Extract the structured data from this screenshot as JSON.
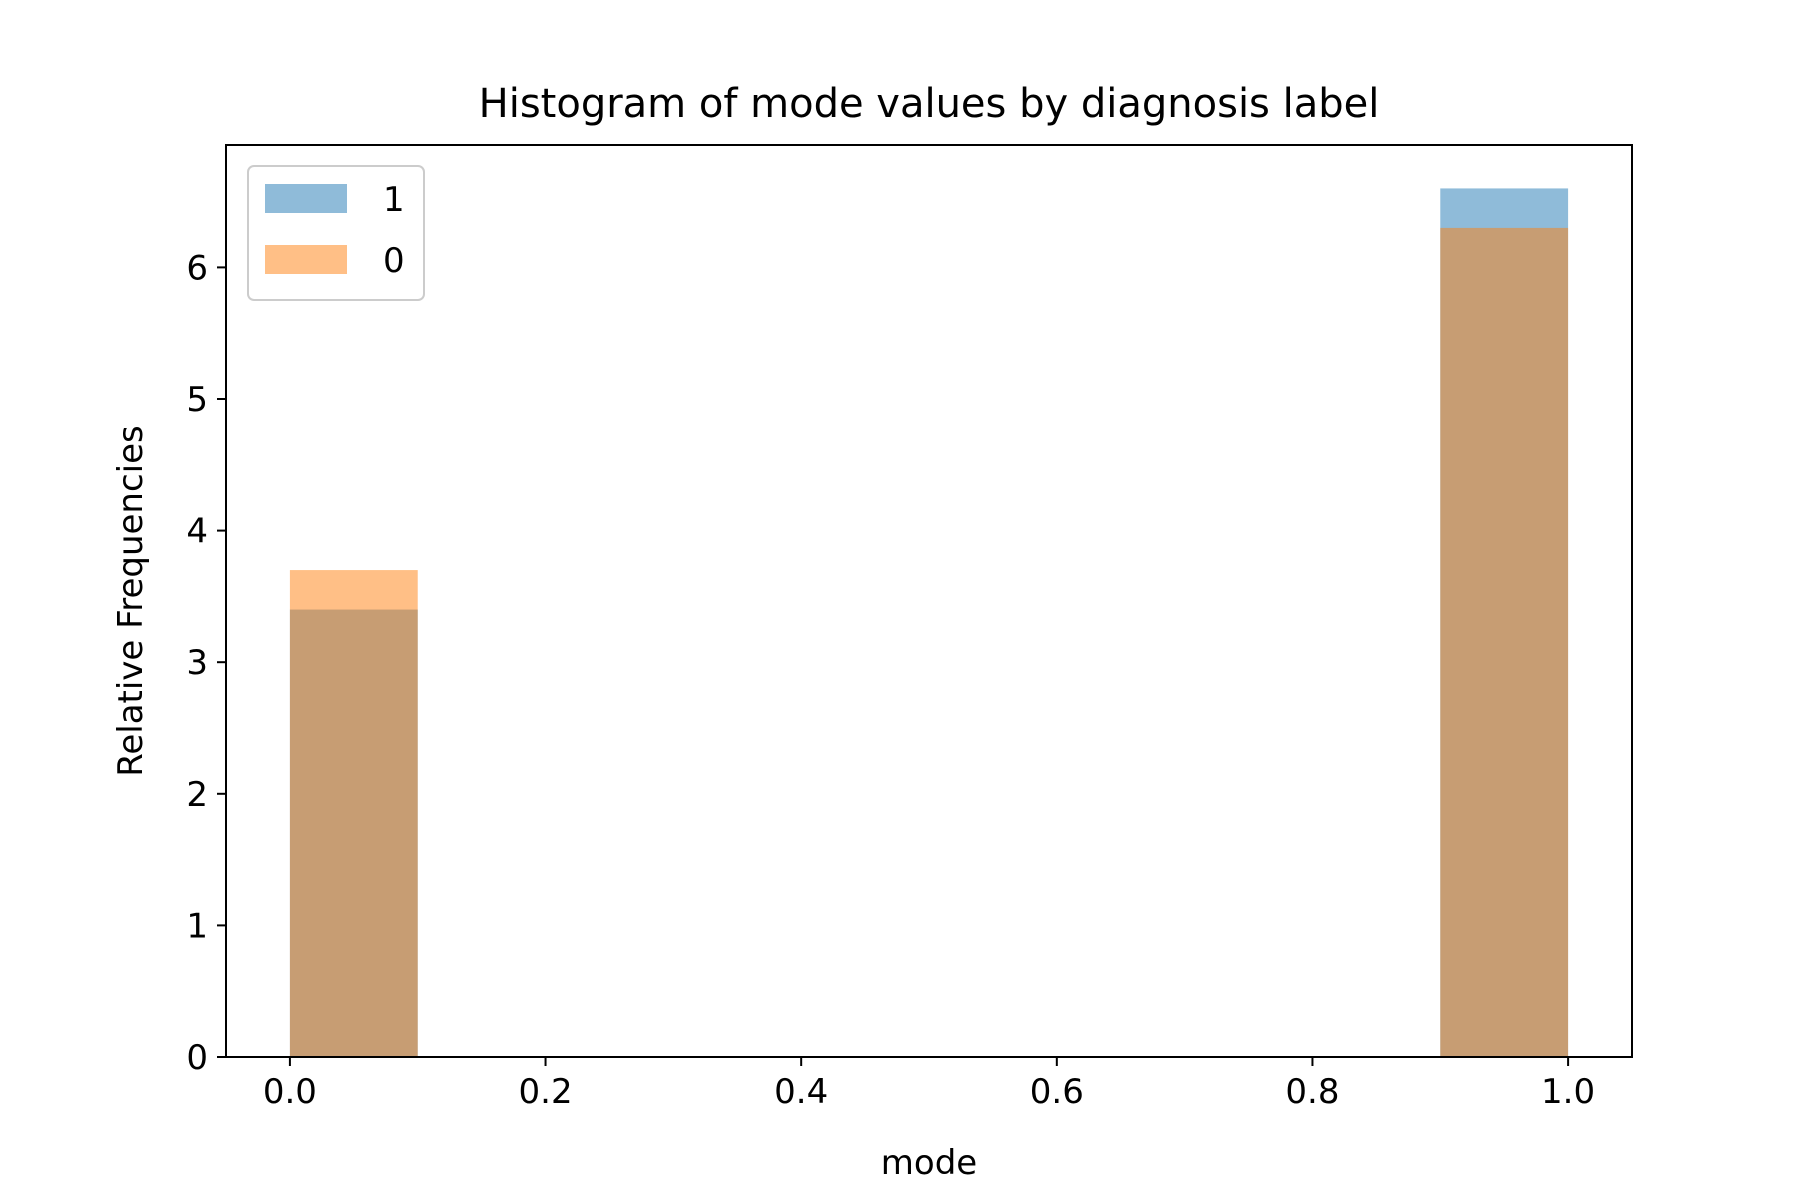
{
  "chart_data": {
    "type": "bar",
    "title": "Histogram of mode values by diagnosis label",
    "xlabel": "mode",
    "ylabel": "Relative Frequencies",
    "xlim": [
      -0.05,
      1.05
    ],
    "ylim": [
      0,
      6.93
    ],
    "grid": false,
    "legend_position": "top-left",
    "bin_edges": [
      0.0,
      0.1,
      0.2,
      0.3,
      0.4,
      0.5,
      0.6,
      0.7,
      0.8,
      0.9,
      1.0
    ],
    "x_ticks": [
      {
        "value": 0.0,
        "label": "0.0"
      },
      {
        "value": 0.2,
        "label": "0.2"
      },
      {
        "value": 0.4,
        "label": "0.4"
      },
      {
        "value": 0.6,
        "label": "0.6"
      },
      {
        "value": 0.8,
        "label": "0.8"
      },
      {
        "value": 1.0,
        "label": "1.0"
      }
    ],
    "y_ticks": [
      {
        "value": 0,
        "label": "0"
      },
      {
        "value": 1,
        "label": "1"
      },
      {
        "value": 2,
        "label": "2"
      },
      {
        "value": 3,
        "label": "3"
      },
      {
        "value": 4,
        "label": "4"
      },
      {
        "value": 5,
        "label": "5"
      },
      {
        "value": 6,
        "label": "6"
      }
    ],
    "series": [
      {
        "name": "1",
        "color": "#1f77b4",
        "opacity": 0.5,
        "values": [
          3.4,
          0,
          0,
          0,
          0,
          0,
          0,
          0,
          0,
          6.6
        ]
      },
      {
        "name": "0",
        "color": "#ff7f0e",
        "opacity": 0.5,
        "values": [
          3.7,
          0,
          0,
          0,
          0,
          0,
          0,
          0,
          0,
          6.3
        ]
      }
    ]
  }
}
